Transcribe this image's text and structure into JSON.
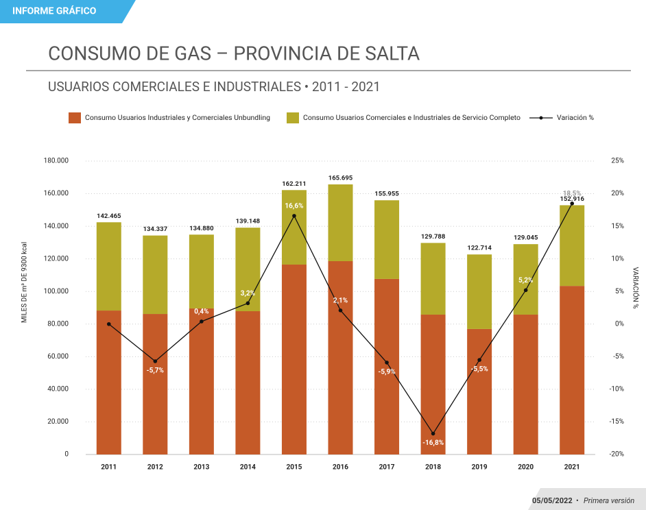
{
  "header": {
    "tag": "INFORME GRÁFICO"
  },
  "footer": {
    "date": "05/05/2022",
    "separator": "•",
    "version": "Primera versión"
  },
  "chart_data": {
    "type": "bar",
    "stacked": true,
    "title": "CONSUMO DE GAS – PROVINCIA DE SALTA",
    "subtitle": "USUARIOS COMERCIALES E INDUSTRIALES • 2011 - 2021",
    "ylabel": "MILES DE m³ DE 9300 kcal",
    "y2label": "VARIACIÓN %",
    "categories": [
      "2011",
      "2012",
      "2013",
      "2014",
      "2015",
      "2016",
      "2017",
      "2018",
      "2019",
      "2020",
      "2021"
    ],
    "series": [
      {
        "name": "Consumo Usuarios Industriales y Comerciales Unbundling",
        "color": "#c55a28",
        "values": [
          88300,
          86200,
          89600,
          87900,
          116500,
          118600,
          107700,
          85800,
          77000,
          85800,
          103400
        ]
      },
      {
        "name": "Consumo Usuarios Comerciales e Industriales de Servicio Completo",
        "color": "#b5aa2a",
        "values": [
          54165,
          48137,
          45280,
          51248,
          45711,
          47095,
          48255,
          43988,
          45714,
          43245,
          49516
        ]
      },
      {
        "name": "Variación %",
        "color": "#111111",
        "type": "line",
        "axis": "y2",
        "values": [
          0,
          -5.7,
          0.4,
          3.2,
          16.6,
          2.1,
          -5.9,
          -16.8,
          -5.5,
          5.2,
          18.5
        ],
        "value_labels": [
          null,
          "-5,7%",
          "0,4%",
          "3,2%",
          "16,6%",
          "2,1%",
          "-5,9%",
          "-16,8%",
          "-5,5%",
          "5,2%",
          "18,5%"
        ]
      }
    ],
    "totals": {
      "values": [
        142465,
        134337,
        134880,
        139148,
        162211,
        165695,
        155955,
        129788,
        122714,
        129045,
        152916
      ],
      "value_labels": [
        "142.465",
        "134.337",
        "134.880",
        "139.148",
        "162.211",
        "165.695",
        "155.955",
        "129.788",
        "122.714",
        "129.045",
        "152.916"
      ]
    },
    "ylim": [
      0,
      180000
    ],
    "yticks": [
      0,
      {
        "value": 20000,
        "label": "20.000"
      },
      {
        "value": 40000,
        "label": "40.000"
      },
      {
        "value": 60000,
        "label": "60.000"
      },
      {
        "value": 80000,
        "label": "80.000"
      },
      {
        "value": 100000,
        "label": "100.000"
      },
      {
        "value": 120000,
        "label": "120.000"
      },
      {
        "value": 140000,
        "label": "140.000"
      },
      {
        "value": 160000,
        "label": "160.000"
      },
      {
        "value": 180000,
        "label": "180.000"
      }
    ],
    "y2lim": [
      -20,
      25
    ],
    "y2ticks": [
      {
        "value": -20,
        "label": "-20%"
      },
      {
        "value": -15,
        "label": "-15%"
      },
      {
        "value": -10,
        "label": "-10%"
      },
      {
        "value": -5,
        "label": "-5%"
      },
      {
        "value": 0,
        "label": "0%"
      },
      {
        "value": 5,
        "label": "5%"
      },
      {
        "value": 10,
        "label": "10%"
      },
      {
        "value": 15,
        "label": "15%"
      },
      {
        "value": 20,
        "label": "20%"
      },
      {
        "value": 25,
        "label": "25%"
      }
    ],
    "grid": true
  }
}
